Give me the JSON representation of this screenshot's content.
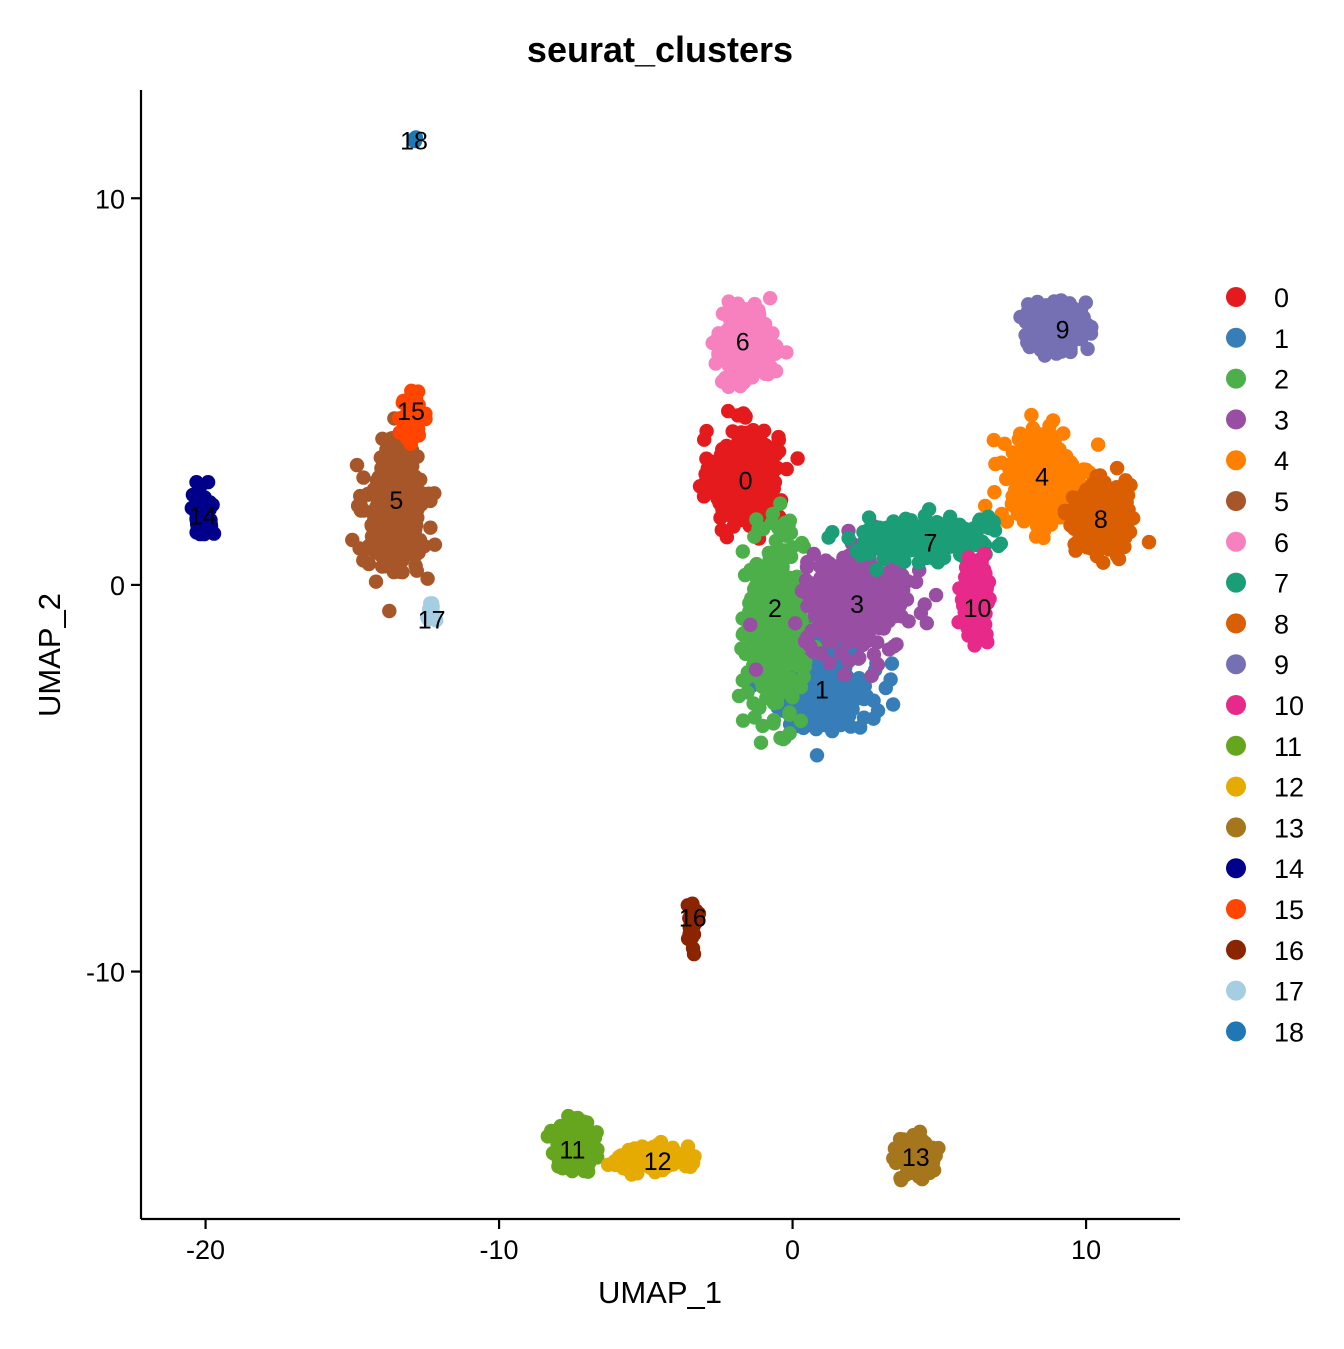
{
  "chart_data": {
    "type": "scatter",
    "title": "seurat_clusters",
    "xlabel": "UMAP_1",
    "ylabel": "UMAP_2",
    "xlim": [
      -22.2,
      13.2
    ],
    "ylim": [
      -16.4,
      12.8
    ],
    "x_ticks": [
      -20,
      -10,
      0,
      10
    ],
    "y_ticks": [
      -10,
      0,
      10
    ],
    "x_tick_labels": [
      "-20",
      "-10",
      "0",
      "10"
    ],
    "y_tick_labels": [
      "-10",
      "0",
      "10"
    ],
    "grid": false,
    "legend_position": "right",
    "series": [
      {
        "name": "0",
        "color": "#E41A1C",
        "cx": -1.6,
        "cy": 2.8,
        "sx": 1.0,
        "sy": 1.1,
        "n": 420,
        "label_x": -1.6,
        "label_y": 2.7
      },
      {
        "name": "1",
        "color": "#377EB8",
        "cx": 1.0,
        "cy": -2.6,
        "sx": 1.5,
        "sy": 1.0,
        "n": 380,
        "label_x": 1.0,
        "label_y": -2.7
      },
      {
        "name": "2",
        "color": "#4DAF4A",
        "cx": -0.6,
        "cy": -1.0,
        "sx": 0.9,
        "sy": 2.0,
        "n": 400,
        "label_x": -0.6,
        "label_y": -0.6
      },
      {
        "name": "3",
        "color": "#984EA3",
        "cx": 2.2,
        "cy": -0.5,
        "sx": 1.6,
        "sy": 1.1,
        "n": 360,
        "label_x": 2.2,
        "label_y": -0.5
      },
      {
        "name": "4",
        "color": "#FF7F00",
        "cx": 8.5,
        "cy": 2.7,
        "sx": 1.1,
        "sy": 1.2,
        "n": 360,
        "label_x": 8.5,
        "label_y": 2.8
      },
      {
        "name": "5",
        "color": "#A65628",
        "cx": -13.5,
        "cy": 2.0,
        "sx": 0.9,
        "sy": 1.5,
        "n": 340,
        "label_x": -13.5,
        "label_y": 2.2
      },
      {
        "name": "6",
        "color": "#F781BF",
        "cx": -1.6,
        "cy": 6.2,
        "sx": 0.8,
        "sy": 0.8,
        "n": 260,
        "label_x": -1.7,
        "label_y": 6.3
      },
      {
        "name": "7",
        "color": "#1B9E77",
        "cx": 4.5,
        "cy": 1.2,
        "sx": 1.8,
        "sy": 0.5,
        "n": 260,
        "label_x": 4.7,
        "label_y": 1.1
      },
      {
        "name": "8",
        "color": "#D95F02",
        "cx": 10.5,
        "cy": 1.7,
        "sx": 0.8,
        "sy": 0.8,
        "n": 260,
        "label_x": 10.5,
        "label_y": 1.7
      },
      {
        "name": "9",
        "color": "#7570B3",
        "cx": 9.0,
        "cy": 6.7,
        "sx": 0.9,
        "sy": 0.5,
        "n": 240,
        "label_x": 9.2,
        "label_y": 6.6
      },
      {
        "name": "10",
        "color": "#E7298A",
        "cx": 6.3,
        "cy": -0.5,
        "sx": 0.4,
        "sy": 0.9,
        "n": 160,
        "label_x": 6.3,
        "label_y": -0.6
      },
      {
        "name": "11",
        "color": "#66A61E",
        "cx": -7.4,
        "cy": -14.5,
        "sx": 0.6,
        "sy": 0.5,
        "n": 200,
        "label_x": -7.5,
        "label_y": -14.6
      },
      {
        "name": "12",
        "color": "#E6AB02",
        "cx": -4.8,
        "cy": -14.8,
        "sx": 1.0,
        "sy": 0.3,
        "n": 150,
        "label_x": -4.6,
        "label_y": -14.9
      },
      {
        "name": "13",
        "color": "#A6761D",
        "cx": 4.2,
        "cy": -14.8,
        "sx": 0.6,
        "sy": 0.4,
        "n": 170,
        "label_x": 4.2,
        "label_y": -14.8
      },
      {
        "name": "14",
        "color": "#00008B",
        "cx": -20.1,
        "cy": 1.9,
        "sx": 0.3,
        "sy": 0.5,
        "n": 90,
        "label_x": -20.1,
        "label_y": 1.8
      },
      {
        "name": "15",
        "color": "#FF4500",
        "cx": -13.0,
        "cy": 4.3,
        "sx": 0.35,
        "sy": 0.6,
        "n": 70,
        "label_x": -13.0,
        "label_y": 4.5
      },
      {
        "name": "16",
        "color": "#8B2500",
        "cx": -3.4,
        "cy": -8.8,
        "sx": 0.2,
        "sy": 0.4,
        "n": 30,
        "label_x": -3.4,
        "label_y": -8.6
      },
      {
        "name": "17",
        "color": "#A6CEE3",
        "cx": -12.3,
        "cy": -0.7,
        "sx": 0.15,
        "sy": 0.3,
        "n": 18,
        "label_x": -12.3,
        "label_y": -0.9
      },
      {
        "name": "18",
        "color": "#1F78B4",
        "cx": -12.9,
        "cy": 11.5,
        "sx": 0.08,
        "sy": 0.05,
        "n": 5,
        "label_x": -12.9,
        "label_y": 11.5
      }
    ]
  }
}
